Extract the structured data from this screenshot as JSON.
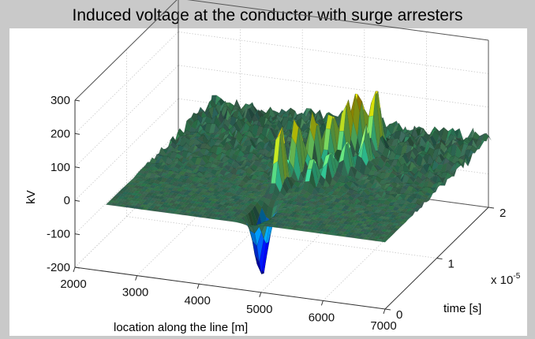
{
  "chart_data": {
    "type": "surface",
    "title": "Induced voltage at the conductor with surge arresters",
    "xlabel": "location along the line [m]",
    "ylabel": "time [s]",
    "zlabel": "kV",
    "y_exponent_label": "x 10",
    "y_exponent_power": "-5",
    "xlim": [
      2000,
      7000
    ],
    "ylim": [
      0,
      2
    ],
    "zlim": [
      -200,
      300
    ],
    "x_ticks": [
      "2000",
      "3000",
      "4000",
      "5000",
      "6000",
      "7000"
    ],
    "y_ticks": [
      "0",
      "1",
      "2"
    ],
    "z_ticks": [
      "-200",
      "-100",
      "0",
      "100",
      "200",
      "300"
    ],
    "grid": true,
    "colormap": "jet",
    "surface": {
      "x_range": [
        2500,
        7000
      ],
      "y_range": [
        0,
        2.05
      ],
      "baseline_kv": 0,
      "noise_kv": 25,
      "trough": {
        "x": 4800,
        "y": 0.25,
        "min_kv": -200
      },
      "peaks": [
        {
          "x": 4720,
          "y": 0.7,
          "kv": 220
        },
        {
          "x": 4780,
          "y": 0.95,
          "kv": 205
        },
        {
          "x": 4920,
          "y": 1.12,
          "kv": 190
        },
        {
          "x": 5080,
          "y": 1.25,
          "kv": 175
        },
        {
          "x": 5230,
          "y": 1.36,
          "kv": 190
        },
        {
          "x": 5360,
          "y": 1.46,
          "kv": 205
        },
        {
          "x": 5520,
          "y": 1.58,
          "kv": 220
        },
        {
          "x": 5600,
          "y": 1.3,
          "kv": 120
        },
        {
          "x": 5450,
          "y": 1.1,
          "kv": 110
        },
        {
          "x": 5300,
          "y": 0.95,
          "kv": 100
        },
        {
          "x": 5150,
          "y": 0.8,
          "kv": 95
        }
      ]
    }
  }
}
